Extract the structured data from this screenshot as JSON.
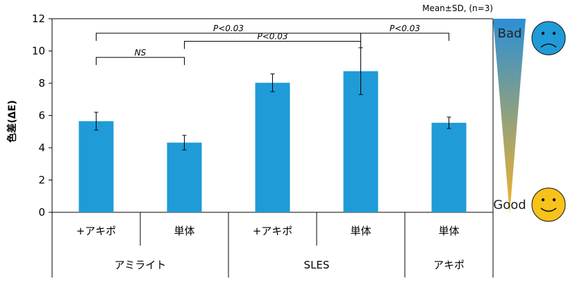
{
  "chart_data": {
    "type": "bar",
    "title": "",
    "xlabel": "",
    "ylabel": "色差(ΔE)",
    "ylim": [
      0,
      12
    ],
    "yticks": [
      0,
      2,
      4,
      6,
      8,
      10,
      12
    ],
    "grid": false,
    "legend": "none",
    "note": "Mean±SD, (n=3)",
    "bar_color": "#1f9bd7",
    "categories": [
      "+アキポ",
      "単体",
      "+アキポ",
      "単体",
      "単体"
    ],
    "groups": [
      {
        "label": "アミライト",
        "span": 2
      },
      {
        "label": "SLES",
        "span": 2
      },
      {
        "label": "アキポ",
        "span": 1
      }
    ],
    "values": [
      5.65,
      4.32,
      8.03,
      8.75,
      5.55
    ],
    "errors": [
      0.55,
      0.45,
      0.55,
      1.45,
      0.35
    ],
    "significance": [
      {
        "from": 0,
        "to": 1,
        "label": "NS",
        "level": 9.6
      },
      {
        "from": 1,
        "to": 3,
        "label": "P<0.03",
        "level": 10.6
      },
      {
        "from": 0,
        "to": 3,
        "label": "P<0.03",
        "level": 11.1
      },
      {
        "from": 3,
        "to": 4,
        "label": "P<0.03",
        "level": 11.1
      }
    ]
  },
  "gauge": {
    "top_label": "Bad",
    "bottom_label": "Good",
    "top_color": "#2b8fd6",
    "bottom_color": "#f5b327",
    "top_icon": "sad-face-icon",
    "bottom_icon": "happy-face-icon"
  }
}
